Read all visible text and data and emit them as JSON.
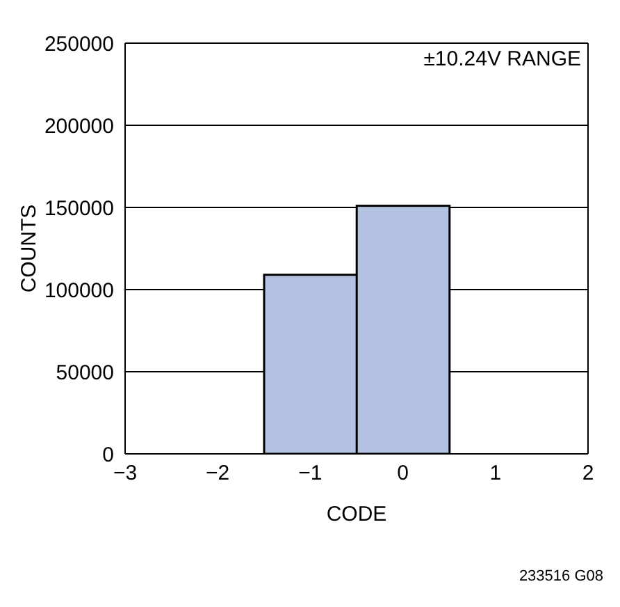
{
  "chart_data": {
    "type": "histogram",
    "xlabel": "CODE",
    "ylabel": "COUNTS",
    "bins": [
      -1.5,
      -0.5,
      0.5
    ],
    "values": [
      109000,
      151000
    ],
    "color": "#b3c2e0",
    "xlim": [
      -3,
      2
    ],
    "xticks": [
      -3,
      -2,
      -1,
      0,
      1,
      2
    ],
    "ylim": [
      0,
      250000
    ],
    "yticks": [
      0,
      50000,
      100000,
      150000,
      200000,
      250000
    ],
    "grid": "y",
    "annotations": [
      "±10.24V RANGE",
      "233516 G08"
    ]
  }
}
